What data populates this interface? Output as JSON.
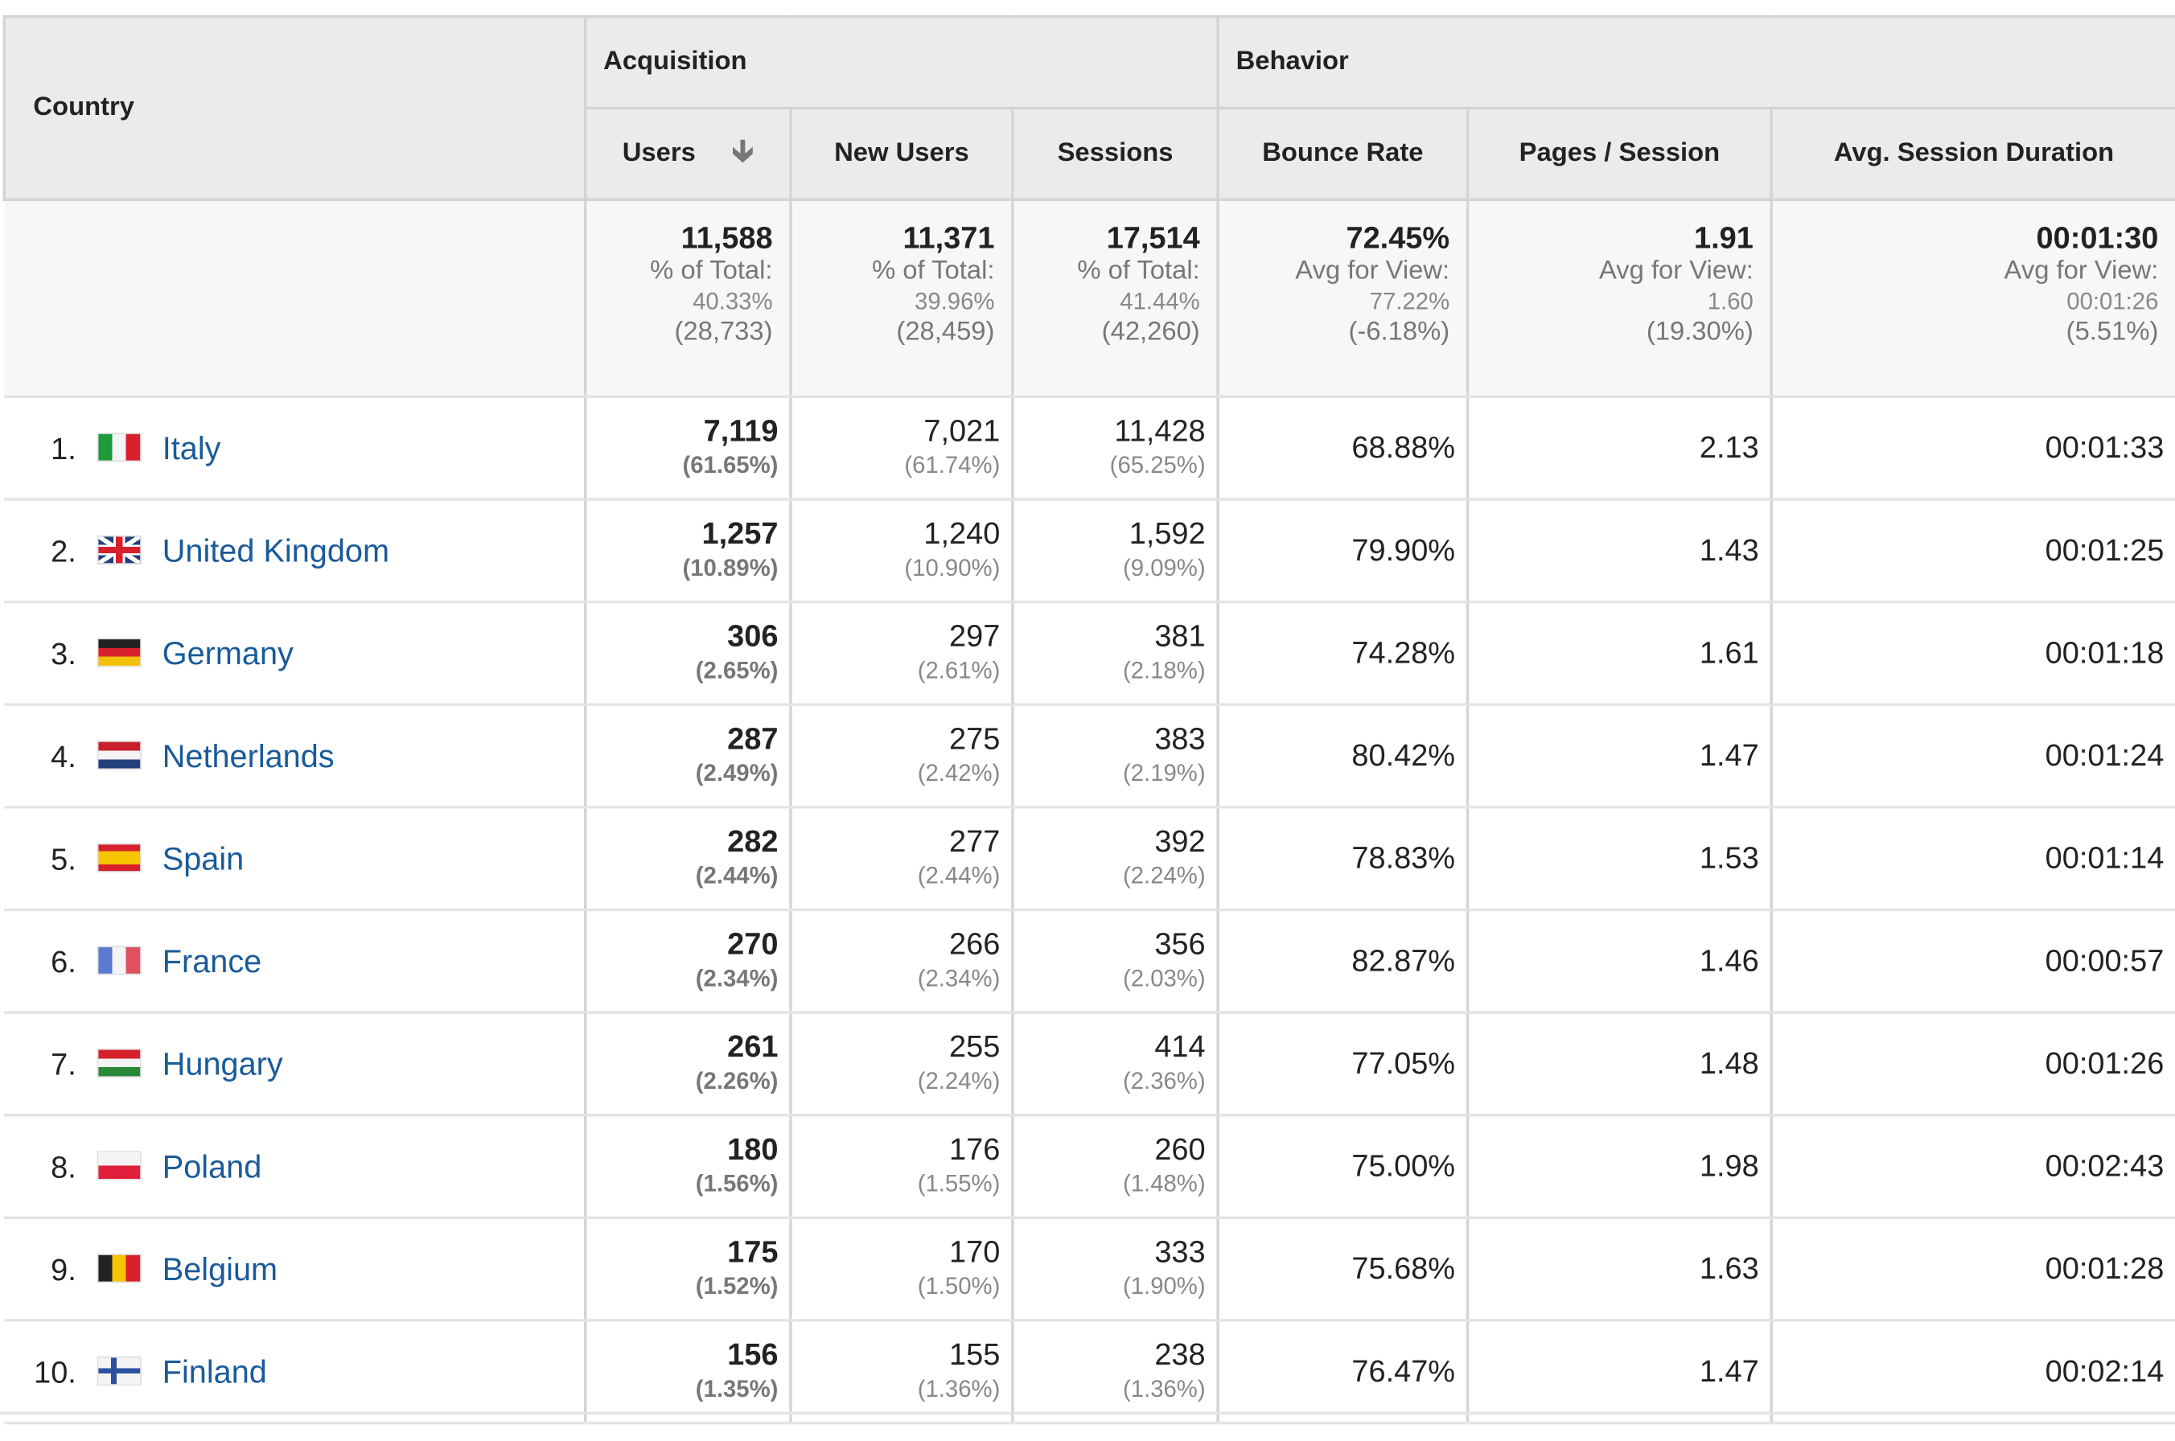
{
  "header": {
    "country": "Country",
    "groups": {
      "acquisition": "Acquisition",
      "behavior": "Behavior"
    },
    "columns": {
      "users": "Users",
      "new_users": "New Users",
      "sessions": "Sessions",
      "bounce_rate": "Bounce Rate",
      "pages_session": "Pages / Session",
      "avg_duration": "Avg. Session Duration"
    },
    "sort_icon": "arrow-down-icon"
  },
  "totals": {
    "users": {
      "value": "11,588",
      "label": "% of Total:",
      "pct": "40.33%",
      "total": "(28,733)"
    },
    "new_users": {
      "value": "11,371",
      "label": "% of Total:",
      "pct": "39.96%",
      "total": "(28,459)"
    },
    "sessions": {
      "value": "17,514",
      "label": "% of Total:",
      "pct": "41.44%",
      "total": "(42,260)"
    },
    "bounce_rate": {
      "value": "72.45%",
      "label": "Avg for View:",
      "pct": "77.22%",
      "total": "(-6.18%)"
    },
    "pages_session": {
      "value": "1.91",
      "label": "Avg for View:",
      "pct": "1.60",
      "total": "(19.30%)"
    },
    "avg_duration": {
      "value": "00:01:30",
      "label": "Avg for View:",
      "pct": "00:01:26",
      "total": "(5.51%)"
    }
  },
  "rows": [
    {
      "rank": "1.",
      "country": "Italy",
      "flag": "flag-italy-icon",
      "users": "7,119",
      "users_pct": "(61.65%)",
      "new_users": "7,021",
      "new_users_pct": "(61.74%)",
      "sessions": "11,428",
      "sessions_pct": "(65.25%)",
      "bounce": "68.88%",
      "pages": "2.13",
      "duration": "00:01:33"
    },
    {
      "rank": "2.",
      "country": "United Kingdom",
      "flag": "flag-uk-icon",
      "users": "1,257",
      "users_pct": "(10.89%)",
      "new_users": "1,240",
      "new_users_pct": "(10.90%)",
      "sessions": "1,592",
      "sessions_pct": "(9.09%)",
      "bounce": "79.90%",
      "pages": "1.43",
      "duration": "00:01:25"
    },
    {
      "rank": "3.",
      "country": "Germany",
      "flag": "flag-germany-icon",
      "users": "306",
      "users_pct": "(2.65%)",
      "new_users": "297",
      "new_users_pct": "(2.61%)",
      "sessions": "381",
      "sessions_pct": "(2.18%)",
      "bounce": "74.28%",
      "pages": "1.61",
      "duration": "00:01:18"
    },
    {
      "rank": "4.",
      "country": "Netherlands",
      "flag": "flag-netherlands-icon",
      "users": "287",
      "users_pct": "(2.49%)",
      "new_users": "275",
      "new_users_pct": "(2.42%)",
      "sessions": "383",
      "sessions_pct": "(2.19%)",
      "bounce": "80.42%",
      "pages": "1.47",
      "duration": "00:01:24"
    },
    {
      "rank": "5.",
      "country": "Spain",
      "flag": "flag-spain-icon",
      "users": "282",
      "users_pct": "(2.44%)",
      "new_users": "277",
      "new_users_pct": "(2.44%)",
      "sessions": "392",
      "sessions_pct": "(2.24%)",
      "bounce": "78.83%",
      "pages": "1.53",
      "duration": "00:01:14"
    },
    {
      "rank": "6.",
      "country": "France",
      "flag": "flag-france-icon",
      "users": "270",
      "users_pct": "(2.34%)",
      "new_users": "266",
      "new_users_pct": "(2.34%)",
      "sessions": "356",
      "sessions_pct": "(2.03%)",
      "bounce": "82.87%",
      "pages": "1.46",
      "duration": "00:00:57"
    },
    {
      "rank": "7.",
      "country": "Hungary",
      "flag": "flag-hungary-icon",
      "users": "261",
      "users_pct": "(2.26%)",
      "new_users": "255",
      "new_users_pct": "(2.24%)",
      "sessions": "414",
      "sessions_pct": "(2.36%)",
      "bounce": "77.05%",
      "pages": "1.48",
      "duration": "00:01:26"
    },
    {
      "rank": "8.",
      "country": "Poland",
      "flag": "flag-poland-icon",
      "users": "180",
      "users_pct": "(1.56%)",
      "new_users": "176",
      "new_users_pct": "(1.55%)",
      "sessions": "260",
      "sessions_pct": "(1.48%)",
      "bounce": "75.00%",
      "pages": "1.98",
      "duration": "00:02:43"
    },
    {
      "rank": "9.",
      "country": "Belgium",
      "flag": "flag-belgium-icon",
      "users": "175",
      "users_pct": "(1.52%)",
      "new_users": "170",
      "new_users_pct": "(1.50%)",
      "sessions": "333",
      "sessions_pct": "(1.90%)",
      "bounce": "75.68%",
      "pages": "1.63",
      "duration": "00:01:28"
    },
    {
      "rank": "10.",
      "country": "Finland",
      "flag": "flag-finland-icon",
      "users": "156",
      "users_pct": "(1.35%)",
      "new_users": "155",
      "new_users_pct": "(1.36%)",
      "sessions": "238",
      "sessions_pct": "(1.36%)",
      "bounce": "76.47%",
      "pages": "1.47",
      "duration": "00:02:14"
    }
  ],
  "colors": {
    "link": "#1a5a9a",
    "header_bg": "#ebebeb",
    "totals_bg": "#f7f7f7"
  }
}
